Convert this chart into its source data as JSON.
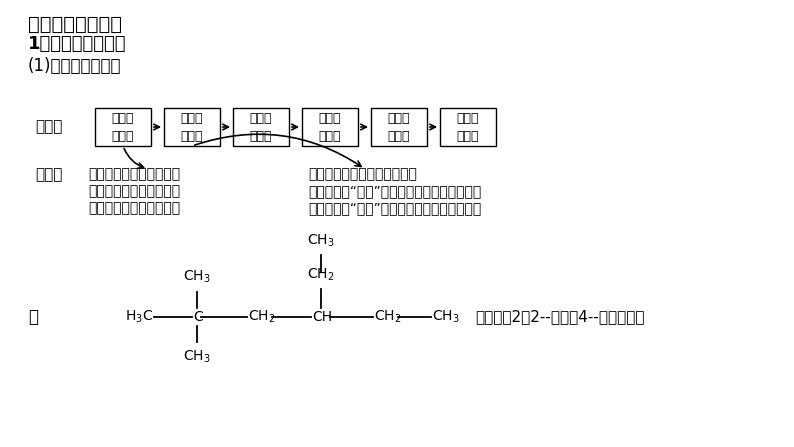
{
  "title1": "二、有机物的命名",
  "title2": "1．烃类物质的命名",
  "title3": "(1)烷烃的系统命名",
  "bg_color": "#ffffff",
  "steps_label": "步骤：",
  "steps": [
    "选主链\n称某烷",
    "编号位\n定支链",
    "取代基\n写在前",
    "标位次\n短线连",
    "不同基\n简到繁",
    "相同基\n合并算"
  ],
  "principle_label": "原则：",
  "principle_text1": "选择最长碳链为主链，有",
  "principle_text2": "多条等长碳链时，选择含",
  "principle_text3": "支链最多的碳链为主链。",
  "principle_text4": "从离支链最近一端开始编号，",
  "principle_text5": "不同取代基“同近”时，从简单一端开始编号；",
  "principle_text6": "相同取代基“同近”时，取代基位次和应最小。",
  "example_label": "如",
  "example_name": "的名称为2，2--二甲基4--乙基己烷。"
}
